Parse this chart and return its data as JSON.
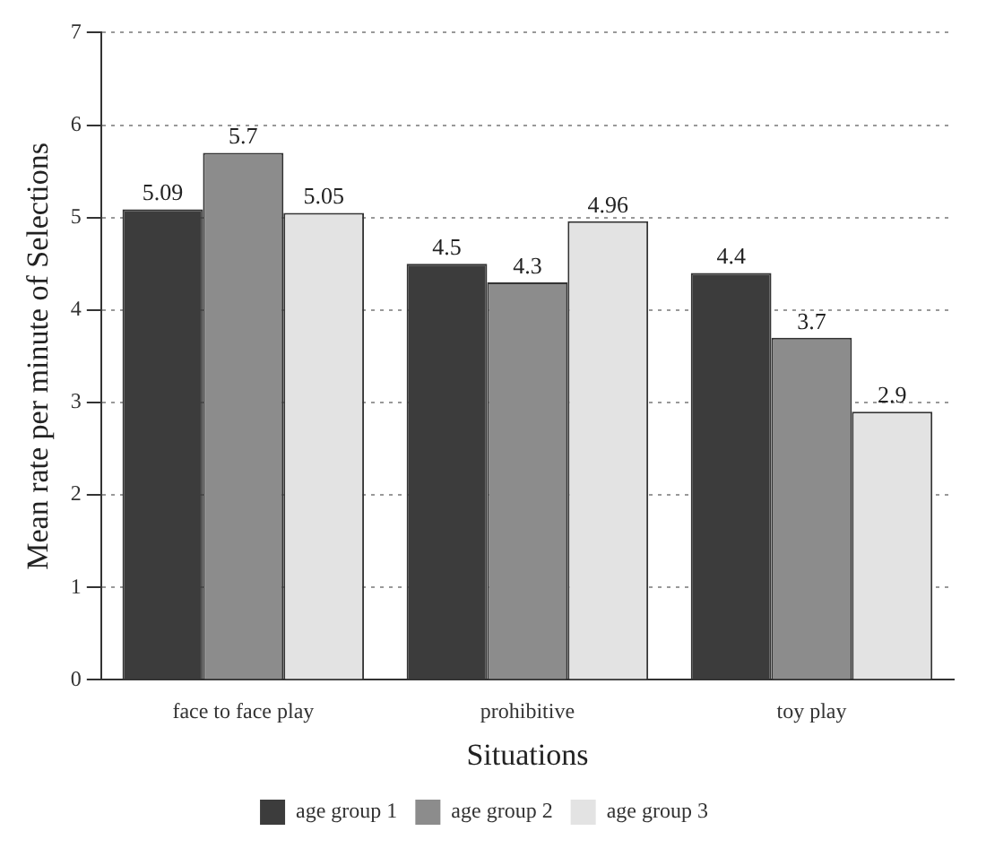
{
  "chart_data": {
    "type": "bar",
    "xlabel": "Situations",
    "ylabel": "Mean rate per minute of Selections",
    "categories": [
      "face to face play",
      "prohibitive",
      "toy play"
    ],
    "series": [
      {
        "name": "age group 1",
        "color": "#3c3c3c",
        "values": [
          5.09,
          4.5,
          4.4
        ]
      },
      {
        "name": "age group 2",
        "color": "#8c8c8c",
        "values": [
          5.7,
          4.3,
          3.7
        ]
      },
      {
        "name": "age group 3",
        "color": "#e3e3e3",
        "values": [
          5.05,
          4.96,
          2.9
        ]
      }
    ],
    "ylim": [
      0,
      7
    ],
    "yticks": [
      0,
      1,
      2,
      3,
      4,
      5,
      6,
      7
    ],
    "grid": "y",
    "legend": "bottom",
    "data_labels": true
  }
}
